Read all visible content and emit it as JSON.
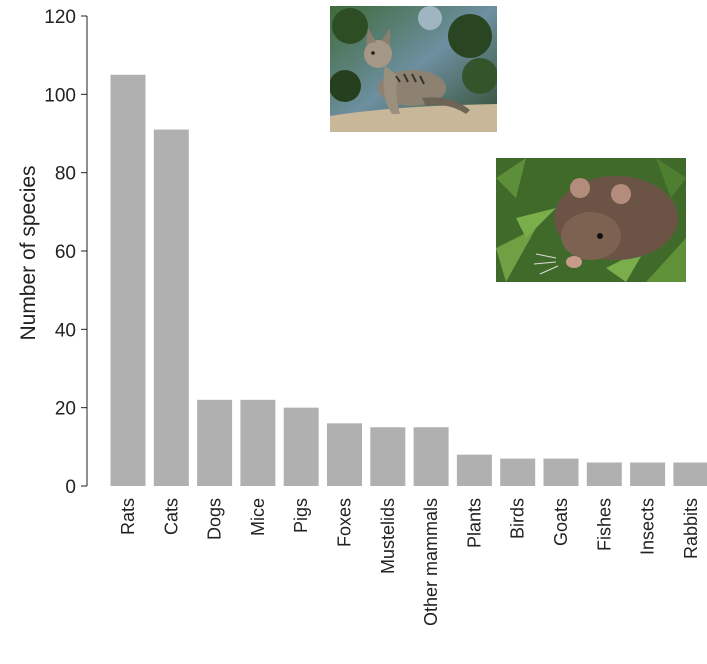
{
  "chart_data": {
    "type": "bar",
    "title": "",
    "xlabel": "",
    "ylabel": "Number of species",
    "ylim": [
      0,
      120
    ],
    "yticks": [
      0,
      20,
      40,
      60,
      80,
      100,
      120
    ],
    "grid": false,
    "legend": "none",
    "bar_color": "#b0b0b0",
    "categories": [
      "Rats",
      "Cats",
      "Dogs",
      "Mice",
      "Pigs",
      "Foxes",
      "Mustelids",
      "Other mammals",
      "Plants",
      "Birds",
      "Goats",
      "Fishes",
      "Insects",
      "Rabbits"
    ],
    "values": [
      105,
      91,
      22,
      22,
      20,
      16,
      15,
      15,
      8,
      7,
      7,
      6,
      6,
      6
    ]
  },
  "images": {
    "cat_photo": "photo of a tabby cat",
    "rat_photo": "photo of a brown rat"
  }
}
